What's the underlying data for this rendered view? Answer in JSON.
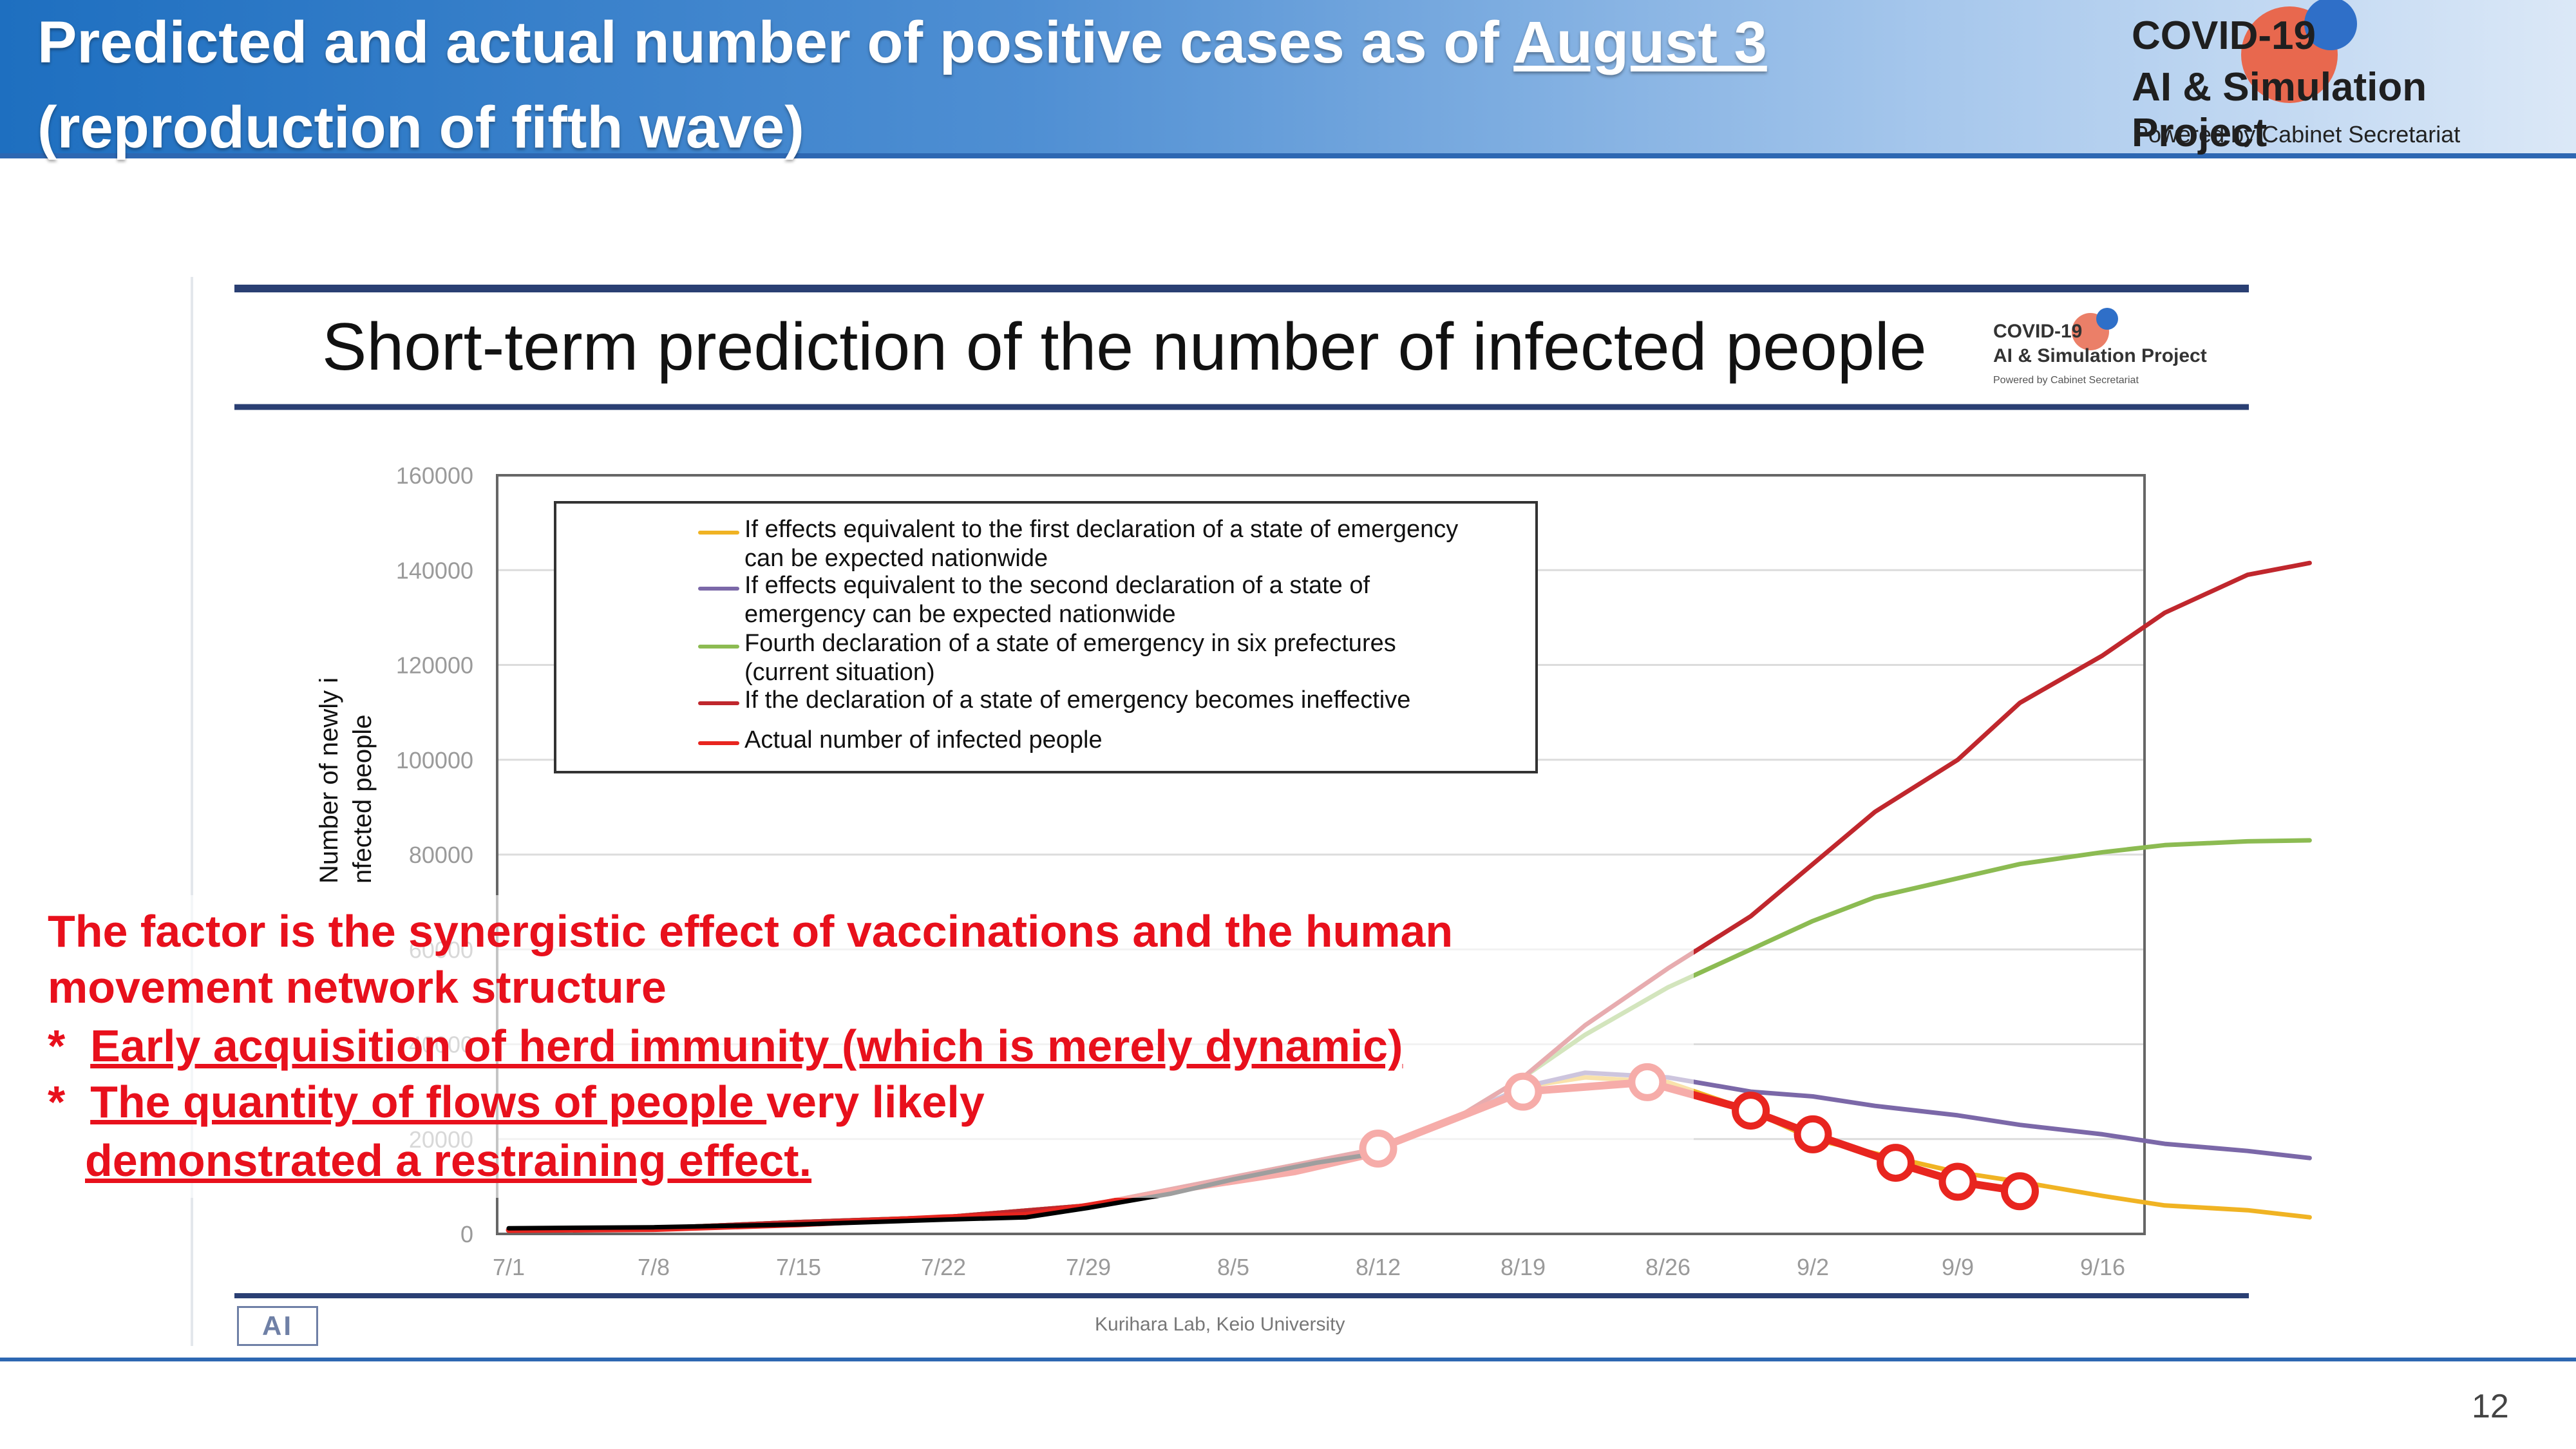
{
  "header": {
    "title_line1_prefix": "Predicted and actual number of positive cases as of ",
    "title_line1_date": "August 3",
    "title_line2": "(reproduction of fifth wave)"
  },
  "logo": {
    "line1": "COVID-19",
    "line2": "AI & Simulation Project",
    "line3": "Powered by Cabinet Secretariat"
  },
  "inner_slide": {
    "title": "Short-term prediction of the number of infected people",
    "logo_line1": "COVID-19",
    "logo_line2": "AI & Simulation Project",
    "logo_line3": "Powered by Cabinet Secretariat",
    "credit": "Kurihara Lab, Keio University",
    "badge": "AI"
  },
  "chart_data": {
    "type": "line",
    "title": "Short-term prediction of the number of infected people",
    "xlabel": "",
    "ylabel": "Number of newly i nfected people",
    "ylabel_lines": [
      "Number of newly i",
      "nfected people"
    ],
    "ylim": [
      0,
      160000
    ],
    "yticks": [
      0,
      20000,
      40000,
      60000,
      80000,
      100000,
      120000,
      140000,
      160000
    ],
    "ytick_labels": [
      "0",
      "20000",
      "40000",
      "60000",
      "80000",
      "100000",
      "120000",
      "140000",
      "160000"
    ],
    "xticks": [
      "7/1",
      "7/8",
      "7/15",
      "7/22",
      "7/29",
      "8/5",
      "8/12",
      "8/19",
      "8/26",
      "9/2",
      "9/9",
      "9/16"
    ],
    "x_unit": "days since 7/1",
    "grid": true,
    "legend_position": "top-left",
    "series": [
      {
        "name": "If effects equivalent to the first declaration of a state of emergency can be expected nationwide",
        "legend_lines": [
          "If effects equivalent to the first declaration of a state of emergency",
          "can be expected nationwide"
        ],
        "color": "#f0b323",
        "points": [
          [
            0,
            1000
          ],
          [
            7,
            1200
          ],
          [
            14,
            2500
          ],
          [
            21,
            3500
          ],
          [
            28,
            6000
          ],
          [
            35,
            12000
          ],
          [
            42,
            18000
          ],
          [
            46,
            25000
          ],
          [
            49,
            31000
          ],
          [
            52,
            33000
          ],
          [
            56,
            32000
          ],
          [
            60,
            26000
          ],
          [
            63,
            20000
          ],
          [
            66,
            17000
          ],
          [
            70,
            13000
          ],
          [
            73,
            11000
          ],
          [
            77,
            8000
          ],
          [
            80,
            6000
          ],
          [
            84,
            5000
          ],
          [
            87,
            3500
          ]
        ]
      },
      {
        "name": "If effects equivalent to the second declaration of a state of emergency can be expected nationwide",
        "legend_lines": [
          "If effects equivalent to the second declaration of a state of",
          "emergency can be expected nationwide"
        ],
        "color": "#7b68a8",
        "points": [
          [
            0,
            1000
          ],
          [
            7,
            1200
          ],
          [
            14,
            2500
          ],
          [
            21,
            3500
          ],
          [
            28,
            6000
          ],
          [
            35,
            12000
          ],
          [
            42,
            18000
          ],
          [
            46,
            25000
          ],
          [
            49,
            31000
          ],
          [
            52,
            34000
          ],
          [
            56,
            33000
          ],
          [
            60,
            30000
          ],
          [
            63,
            29000
          ],
          [
            66,
            27000
          ],
          [
            70,
            25000
          ],
          [
            73,
            23000
          ],
          [
            77,
            21000
          ],
          [
            80,
            19000
          ],
          [
            84,
            17500
          ],
          [
            87,
            16000
          ]
        ]
      },
      {
        "name": "Fourth declaration of a state of emergency in six prefectures (current situation)",
        "legend_lines": [
          "Fourth declaration of a state of emergency in six prefectures",
          "(current situation)"
        ],
        "color": "#8cbb52",
        "points": [
          [
            0,
            1000
          ],
          [
            7,
            1200
          ],
          [
            14,
            2500
          ],
          [
            21,
            3500
          ],
          [
            28,
            6000
          ],
          [
            35,
            12000
          ],
          [
            42,
            18000
          ],
          [
            46,
            25000
          ],
          [
            49,
            33000
          ],
          [
            52,
            42000
          ],
          [
            56,
            52000
          ],
          [
            60,
            60000
          ],
          [
            63,
            66000
          ],
          [
            66,
            71000
          ],
          [
            70,
            75000
          ],
          [
            73,
            78000
          ],
          [
            77,
            80500
          ],
          [
            80,
            82000
          ],
          [
            84,
            82800
          ],
          [
            87,
            83000
          ]
        ]
      },
      {
        "name": "If the declaration of a state of emergency becomes ineffective",
        "legend_lines": [
          "If the declaration of a state of emergency becomes ineffective"
        ],
        "color": "#c0272d",
        "points": [
          [
            0,
            1000
          ],
          [
            7,
            1200
          ],
          [
            14,
            2500
          ],
          [
            21,
            3500
          ],
          [
            28,
            6000
          ],
          [
            35,
            12000
          ],
          [
            42,
            18000
          ],
          [
            46,
            25000
          ],
          [
            49,
            33000
          ],
          [
            52,
            44000
          ],
          [
            56,
            56000
          ],
          [
            60,
            67000
          ],
          [
            63,
            78000
          ],
          [
            66,
            89000
          ],
          [
            70,
            100000
          ],
          [
            73,
            112000
          ],
          [
            77,
            122000
          ],
          [
            80,
            131000
          ],
          [
            84,
            139000
          ],
          [
            87,
            141500
          ]
        ]
      },
      {
        "name": "Actual number of infected people",
        "legend_lines": [
          "Actual number of infected people"
        ],
        "color": "#e8251f",
        "points": [
          [
            0,
            800
          ],
          [
            7,
            1000
          ],
          [
            14,
            2000
          ],
          [
            21,
            3500
          ],
          [
            25,
            4000
          ],
          [
            28,
            6000
          ],
          [
            32,
            9000
          ],
          [
            35,
            11000
          ],
          [
            38,
            13000
          ],
          [
            42,
            17000
          ]
        ]
      },
      {
        "name": "",
        "color": "#000000",
        "points": [
          [
            0,
            1200
          ],
          [
            7,
            1400
          ],
          [
            14,
            2000
          ],
          [
            21,
            3000
          ],
          [
            25,
            3500
          ],
          [
            28,
            5500
          ],
          [
            32,
            8500
          ],
          [
            35,
            11500
          ],
          [
            39,
            15000
          ],
          [
            42,
            17000
          ]
        ]
      }
    ],
    "markers": {
      "color": "#e8251f",
      "points": [
        [
          42,
          18000
        ],
        [
          49,
          30000
        ],
        [
          55,
          32000
        ],
        [
          60,
          26000
        ],
        [
          63,
          21000
        ],
        [
          67,
          15000
        ],
        [
          70,
          11000
        ],
        [
          73,
          9000
        ]
      ]
    }
  },
  "annotation": {
    "line1": "The factor is the synergistic effect of vaccinations and the human",
    "line2": "movement network structure",
    "bullet1_star": "*",
    "bullet1_text": "Early acquisition of herd immunity (which is merely dynamic)",
    "bullet2_star": "*",
    "bullet2_underlined": "The quantity of flows of people ",
    "bullet2_rest": "very likely",
    "bullet2_line2": "demonstrated a restraining effect."
  },
  "footer": {
    "page_number": "12"
  }
}
